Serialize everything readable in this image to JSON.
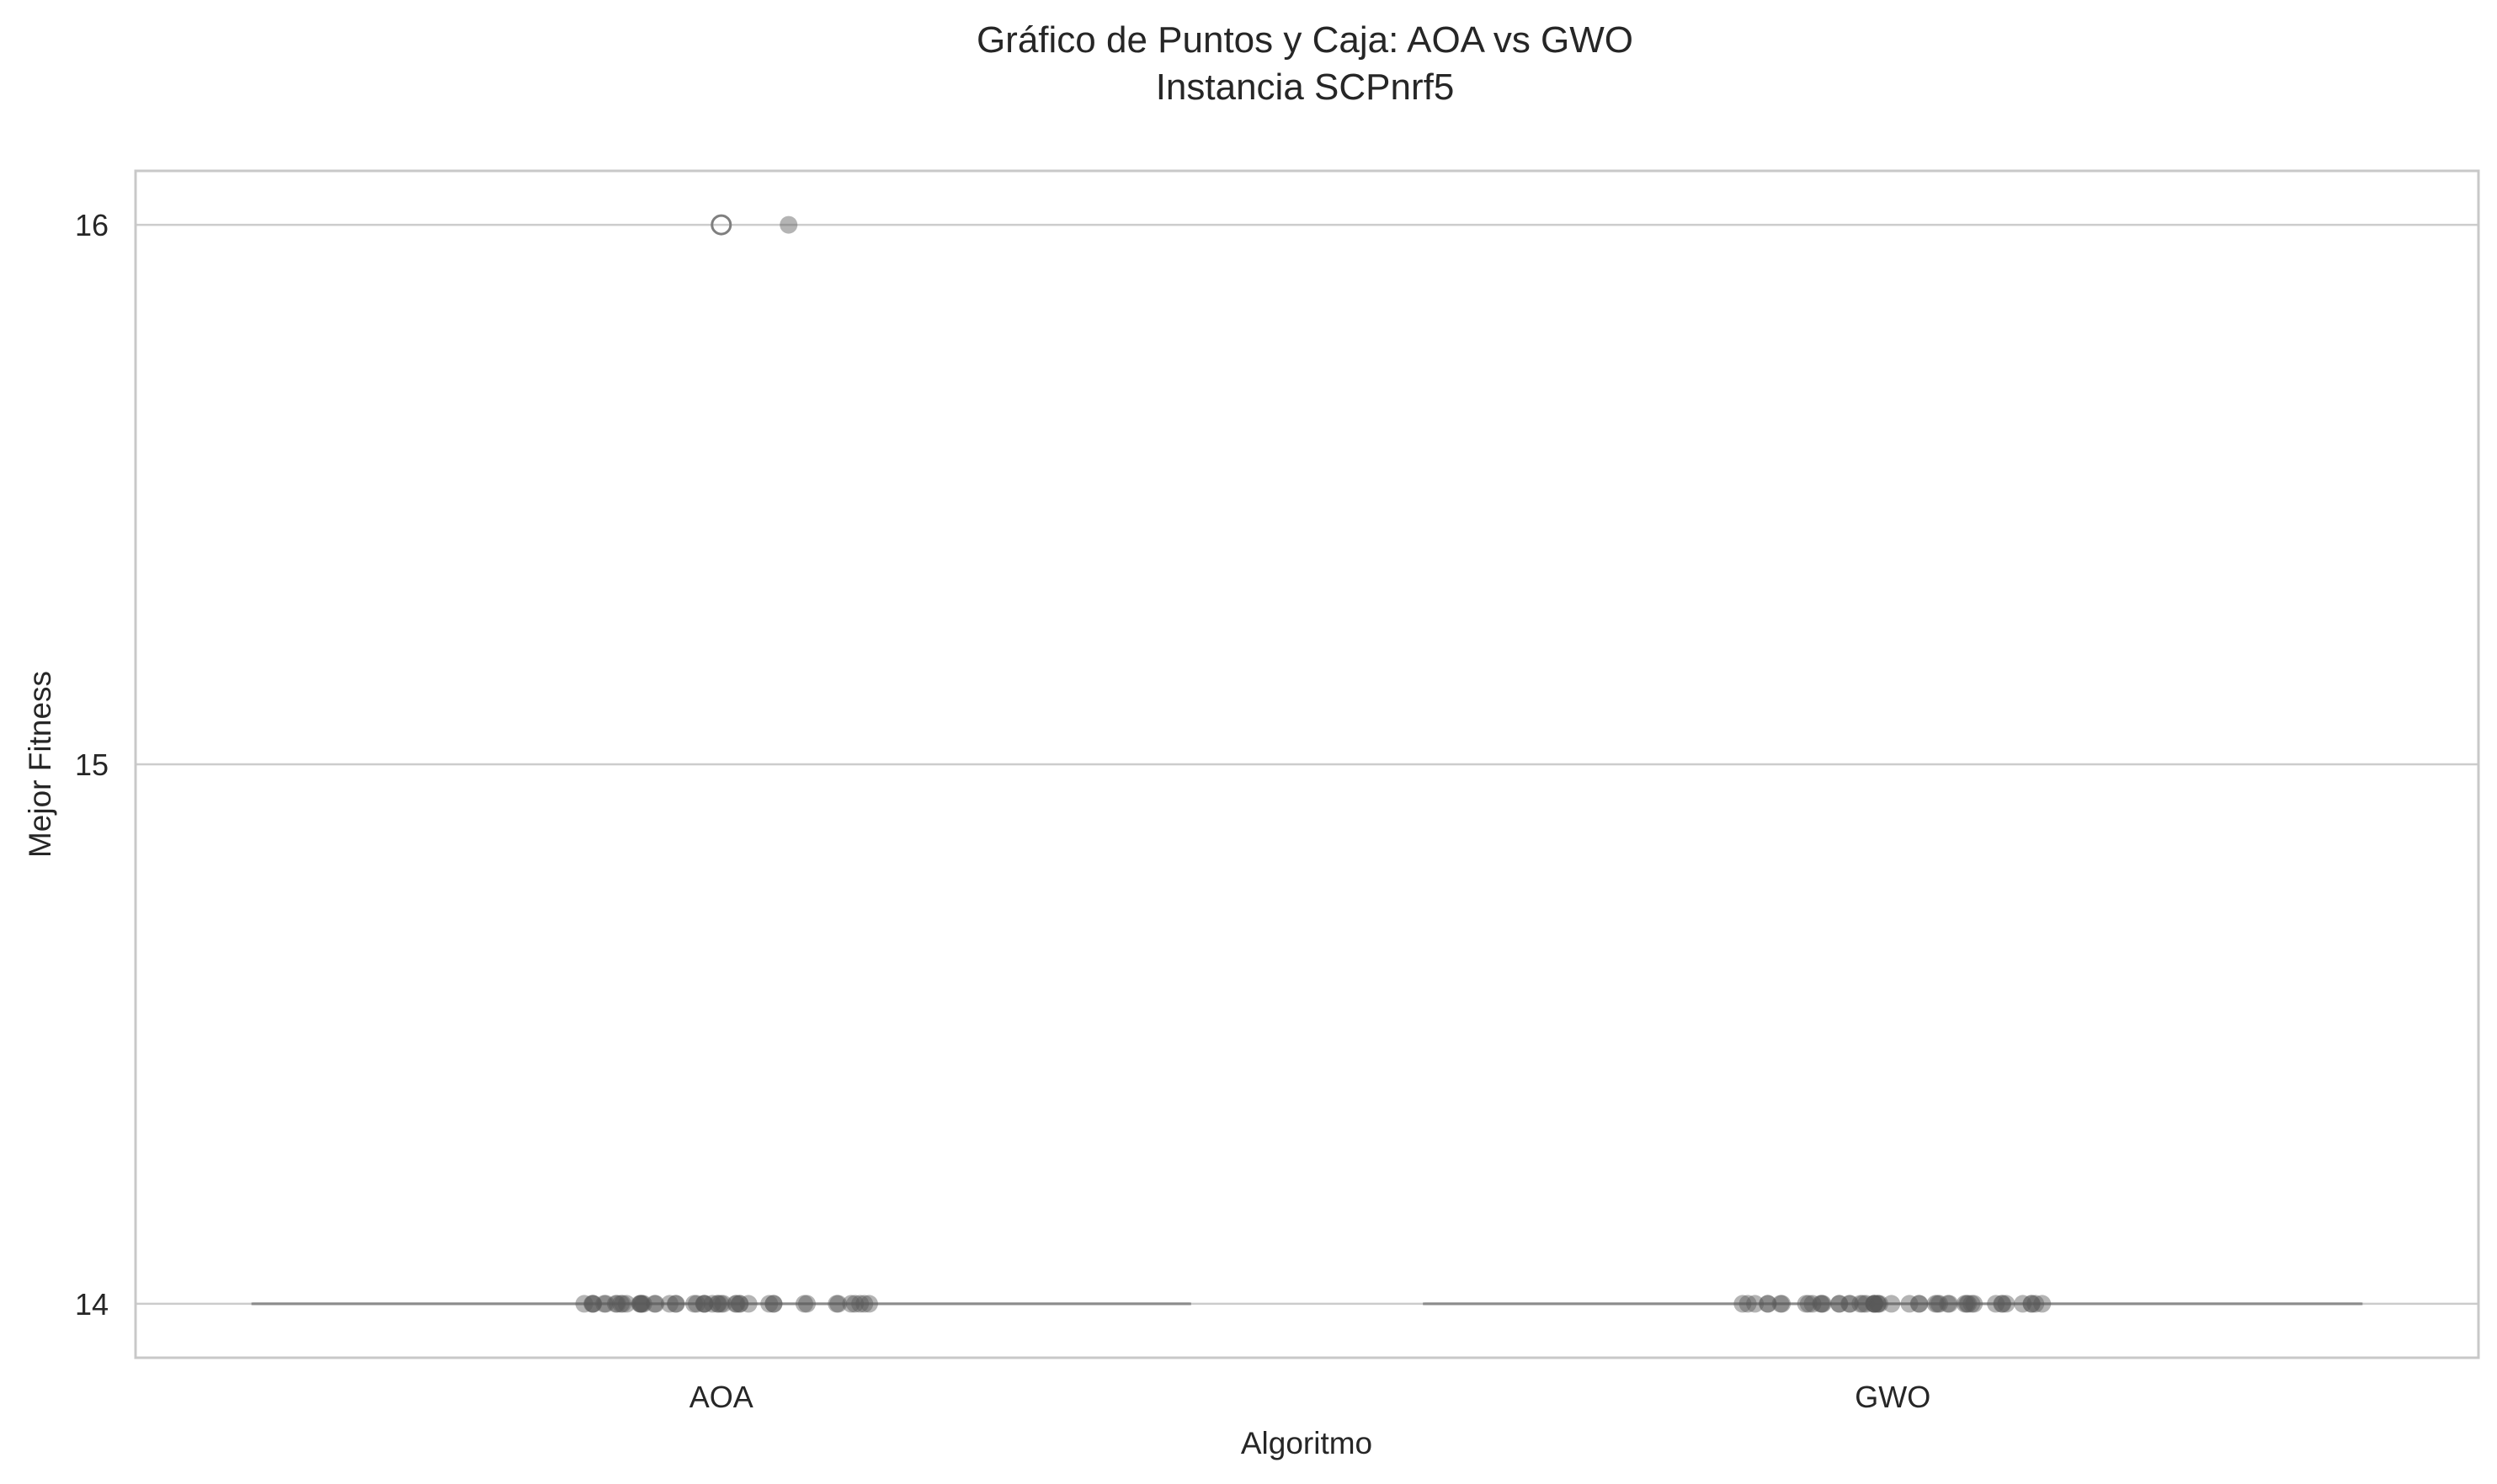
{
  "chart_data": {
    "type": "box-strip",
    "title": "Gráfico de Puntos y Caja: AOA vs GWO",
    "subtitle": "Instancia SCPnrf5",
    "xlabel": "Algoritmo",
    "ylabel": "Mejor Fitness",
    "categories": [
      "AOA",
      "GWO"
    ],
    "ylim": [
      13.9,
      16.1
    ],
    "yticks": [
      14,
      15,
      16
    ],
    "ytick_labels": [
      "14",
      "15",
      "16"
    ],
    "grid": "horizontal",
    "colors": {
      "frame": "#c8c8c8",
      "grid": "#cccccc",
      "box_line": "#8c8c8c",
      "points": "#595959",
      "outlier_edge": "#7f7f7f"
    },
    "boxes": [
      {
        "category": "AOA",
        "min": 14,
        "q1": 14,
        "median": 14,
        "q3": 14,
        "max": 14,
        "outliers": [
          16
        ]
      },
      {
        "category": "GWO",
        "min": 14,
        "q1": 14,
        "median": 14,
        "q3": 14,
        "max": 14,
        "outliers": []
      }
    ],
    "points": [
      {
        "category": "AOA",
        "values": [
          14,
          14,
          14,
          14,
          14,
          14,
          14,
          14,
          14,
          14,
          14,
          14,
          14,
          14,
          14,
          14,
          14,
          14,
          14,
          14,
          14,
          14,
          14,
          14,
          14,
          14,
          14,
          14,
          14,
          14,
          14,
          14,
          14,
          14,
          14,
          14,
          14,
          14,
          14,
          14,
          14,
          14,
          14,
          14,
          14,
          14,
          14,
          14,
          16
        ]
      },
      {
        "category": "GWO",
        "values": [
          14,
          14,
          14,
          14,
          14,
          14,
          14,
          14,
          14,
          14,
          14,
          14,
          14,
          14,
          14,
          14,
          14,
          14,
          14,
          14,
          14,
          14,
          14,
          14,
          14,
          14,
          14,
          14,
          14,
          14,
          14,
          14,
          14,
          14,
          14,
          14,
          14,
          14,
          14,
          14,
          14,
          14,
          14,
          14,
          14,
          14,
          14,
          14,
          14,
          14
        ]
      }
    ]
  }
}
